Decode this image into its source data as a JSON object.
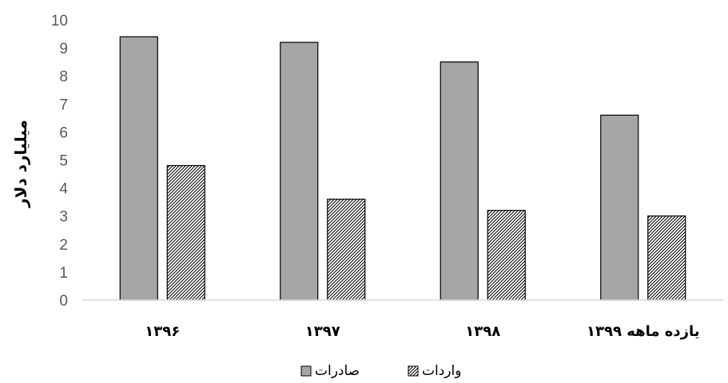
{
  "chart_data": {
    "type": "bar",
    "title": "",
    "xlabel": "",
    "ylabel": "میلیارد دلار",
    "ylim": [
      0,
      10
    ],
    "yticks": [
      0,
      1,
      2,
      3,
      4,
      5,
      6,
      7,
      8,
      9,
      10
    ],
    "grid": false,
    "legend_position": "bottom",
    "categories": [
      "۱۳۹۶",
      "۱۳۹۷",
      "۱۳۹۸",
      "یازده  ماهه ۱۳۹۹"
    ],
    "series": [
      {
        "name": "صادرات",
        "values": [
          9.4,
          9.2,
          8.5,
          6.6
        ],
        "color": "#a6a6a6",
        "pattern": "solid"
      },
      {
        "name": "واردات",
        "values": [
          4.8,
          3.6,
          3.2,
          3.0
        ],
        "color": "#ffffff",
        "pattern": "diagonal-hatch"
      }
    ]
  }
}
